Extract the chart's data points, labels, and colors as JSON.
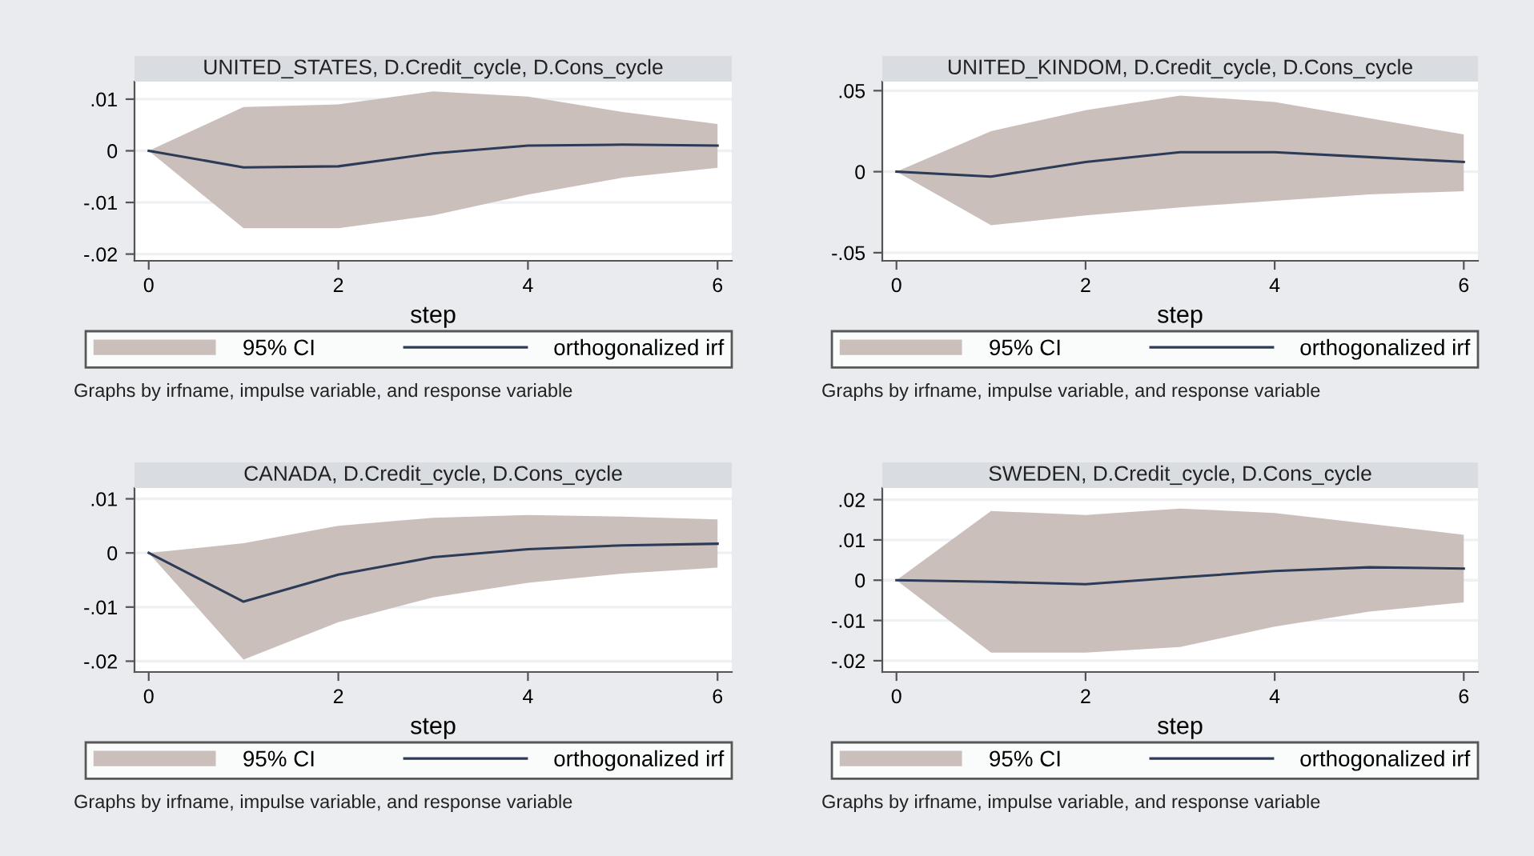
{
  "chart_data": [
    {
      "type": "line",
      "title": "UNITED_STATES, D.Credit_cycle, D.Cons_cycle",
      "xlabel": "step",
      "x": [
        0,
        1,
        2,
        3,
        4,
        5,
        6
      ],
      "xlim": [
        -0.15,
        6.15
      ],
      "xticks": [
        0,
        2,
        4,
        6
      ],
      "ylim": [
        -0.0213,
        0.0134
      ],
      "yticks": [
        {
          "value": -0.02,
          "label": "-.02"
        },
        {
          "value": -0.01,
          "label": "-.01"
        },
        {
          "value": 0,
          "label": "0"
        },
        {
          "value": 0.01,
          "label": ".01"
        }
      ],
      "grid": "y",
      "legend": "bottom",
      "annotations": [
        "Graphs by irfname, impulse variable, and response variable",
        "95% CI"
      ],
      "series": [
        {
          "type": "line",
          "name": "orthogonalized irf",
          "color": "#2c3b57",
          "values": [
            0,
            -0.0032,
            -0.003,
            -0.0005,
            0.001,
            0.0012,
            0.001
          ],
          "lower": [
            0,
            -0.015,
            -0.015,
            -0.0125,
            -0.0085,
            -0.0052,
            -0.0033
          ],
          "upper": [
            0,
            0.0085,
            0.009,
            0.0115,
            0.0105,
            0.0075,
            0.0052
          ]
        }
      ]
    },
    {
      "type": "line",
      "title": "UNITED_KINDOM, D.Credit_cycle, D.Cons_cycle",
      "xlabel": "step",
      "x": [
        0,
        1,
        2,
        3,
        4,
        5,
        6
      ],
      "xlim": [
        -0.15,
        6.15
      ],
      "xticks": [
        0,
        2,
        4,
        6
      ],
      "ylim": [
        -0.055,
        0.0556
      ],
      "yticks": [
        {
          "value": -0.05,
          "label": "-.05"
        },
        {
          "value": 0,
          "label": "0"
        },
        {
          "value": 0.05,
          "label": ".05"
        }
      ],
      "grid": "y",
      "legend": "bottom",
      "annotations": [
        "Graphs by irfname, impulse variable, and response variable",
        "95% CI"
      ],
      "series": [
        {
          "type": "line",
          "name": "orthogonalized irf",
          "color": "#2c3b57",
          "values": [
            0,
            -0.003,
            0.006,
            0.012,
            0.012,
            0.009,
            0.006
          ],
          "lower": [
            0,
            -0.033,
            -0.027,
            -0.022,
            -0.018,
            -0.014,
            -0.012
          ],
          "upper": [
            0,
            0.025,
            0.038,
            0.047,
            0.043,
            0.033,
            0.023
          ]
        }
      ]
    },
    {
      "type": "line",
      "title": "CANADA, D.Credit_cycle, D.Cons_cycle",
      "xlabel": "step",
      "x": [
        0,
        1,
        2,
        3,
        4,
        5,
        6
      ],
      "xlim": [
        -0.15,
        6.15
      ],
      "xticks": [
        0,
        2,
        4,
        6
      ],
      "ylim": [
        -0.022,
        0.012
      ],
      "yticks": [
        {
          "value": -0.02,
          "label": "-.02"
        },
        {
          "value": -0.01,
          "label": "-.01"
        },
        {
          "value": 0,
          "label": "0"
        },
        {
          "value": 0.01,
          "label": ".01"
        }
      ],
      "grid": "y",
      "legend": "bottom",
      "annotations": [
        "Graphs by irfname, impulse variable, and response variable",
        "95% CI"
      ],
      "series": [
        {
          "type": "line",
          "name": "orthogonalized irf",
          "color": "#2c3b57",
          "values": [
            0,
            -0.009,
            -0.004,
            -0.0008,
            0.0007,
            0.0014,
            0.0017
          ],
          "lower": [
            0,
            -0.0197,
            -0.0128,
            -0.0082,
            -0.0055,
            -0.0038,
            -0.0027
          ],
          "upper": [
            0,
            0.0018,
            0.005,
            0.0065,
            0.007,
            0.0067,
            0.0062
          ]
        }
      ]
    },
    {
      "type": "line",
      "title": "SWEDEN, D.Credit_cycle, D.Cons_cycle",
      "xlabel": "step",
      "x": [
        0,
        1,
        2,
        3,
        4,
        5,
        6
      ],
      "xlim": [
        -0.15,
        6.15
      ],
      "xticks": [
        0,
        2,
        4,
        6
      ],
      "ylim": [
        -0.0228,
        0.0229
      ],
      "yticks": [
        {
          "value": -0.02,
          "label": "-.02"
        },
        {
          "value": -0.01,
          "label": "-.01"
        },
        {
          "value": 0,
          "label": "0"
        },
        {
          "value": 0.01,
          "label": ".01"
        },
        {
          "value": 0.02,
          "label": ".02"
        }
      ],
      "grid": "y",
      "legend": "bottom",
      "annotations": [
        "Graphs by irfname, impulse variable, and response variable",
        "95% CI"
      ],
      "series": [
        {
          "type": "line",
          "name": "orthogonalized irf",
          "color": "#2c3b57",
          "values": [
            0,
            -0.0004,
            -0.001,
            0.0007,
            0.0023,
            0.0032,
            0.0029
          ],
          "lower": [
            0,
            -0.018,
            -0.018,
            -0.0166,
            -0.0115,
            -0.0078,
            -0.0055
          ],
          "upper": [
            0,
            0.0172,
            0.0162,
            0.0178,
            0.0167,
            0.014,
            0.0113
          ]
        }
      ]
    }
  ]
}
